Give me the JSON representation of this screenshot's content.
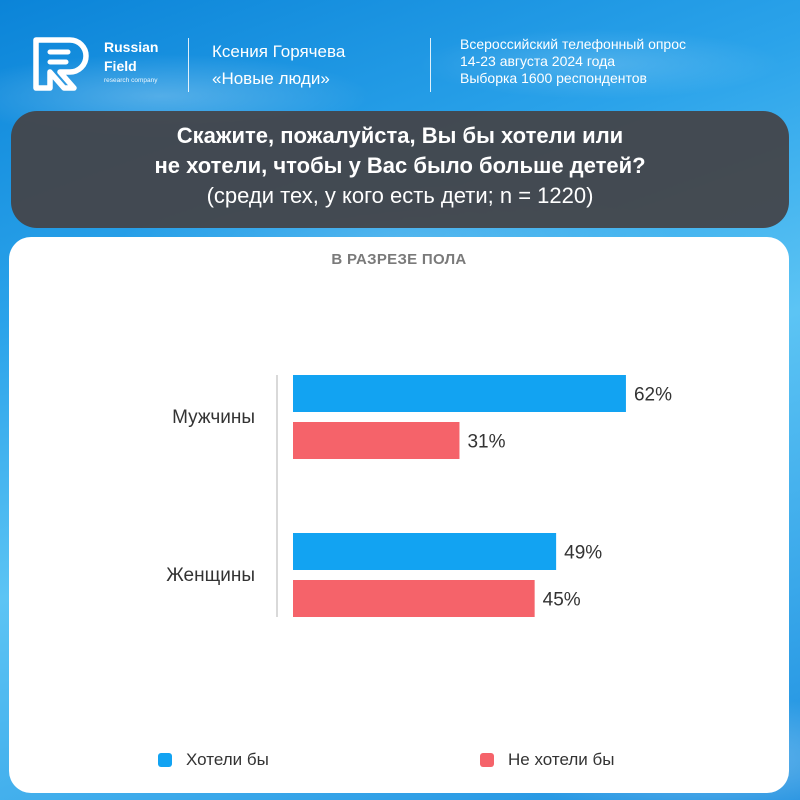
{
  "brand": {
    "line1": "Russian",
    "line2": "Field",
    "line3": "research company",
    "logo_icon": "rf-logo-icon"
  },
  "author": {
    "name": "Ксения Горячева",
    "party": "«Новые люди»"
  },
  "survey": {
    "line1": "Всероссийский телефонный опрос",
    "line2": "14-23 августа 2024 года",
    "line3": "Выборка 1600 респондентов"
  },
  "question": {
    "line1": "Скажите, пожалуйста, Вы бы хотели или",
    "line2": "не хотели, чтобы у Вас было больше детей?",
    "subtitle": "(среди тех, у кого есть дети; n = 1220)"
  },
  "colors": {
    "want": "#12A3F2",
    "not_want": "#F5636A",
    "question_bg": "#444448"
  },
  "chart_data": {
    "type": "bar",
    "orientation": "horizontal",
    "title": "В РАЗРЕЗЕ ПОЛА",
    "categories": [
      "Мужчины",
      "Женщины"
    ],
    "series": [
      {
        "name": "Хотели бы",
        "values": [
          62,
          49
        ],
        "labels": [
          "62%",
          "49%"
        ],
        "color": "#12A3F2"
      },
      {
        "name": "Не хотели бы",
        "values": [
          31,
          45
        ],
        "labels": [
          "31%",
          "45%"
        ],
        "color": "#F5636A"
      }
    ],
    "xlim": [
      0,
      100
    ],
    "legend_position": "bottom",
    "grid": false
  }
}
